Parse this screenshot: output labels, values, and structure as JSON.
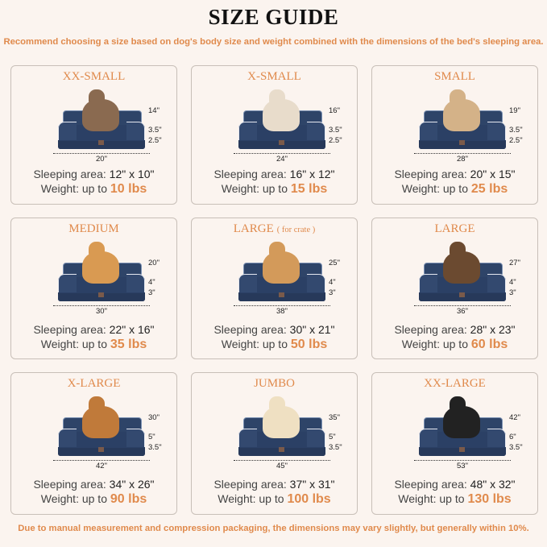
{
  "title": "SIZE GUIDE",
  "subtitle": "Recommend choosing a size based on dog's body size and weight combined with the dimensions of the bed's sleeping area.",
  "footer": "Due to manual measurement and compression packaging, the dimensions may vary slightly, but generally within 10%.",
  "labels": {
    "sleeping_area": "Sleeping area:",
    "weight": "Weight: up to"
  },
  "colors": {
    "accent": "#e08a4c",
    "bed": "#2e4468",
    "background": "#fbf4ef"
  },
  "sizes": [
    {
      "name": "XX-SMALL",
      "pet": "cat",
      "total_height": "14\"",
      "top_height": "3.5\"",
      "base_height": "2.5\"",
      "width": "20\"",
      "sleeping_area": "12\" x 10\"",
      "weight": "10 lbs",
      "pet_color": "#8a6a50"
    },
    {
      "name": "X-SMALL",
      "pet": "dog",
      "total_height": "16\"",
      "top_height": "3.5\"",
      "base_height": "2.5\"",
      "width": "24\"",
      "sleeping_area": "16\" x 12\"",
      "weight": "15 lbs",
      "pet_color": "#e8dccb"
    },
    {
      "name": "SMALL",
      "pet": "dog",
      "total_height": "19\"",
      "top_height": "3.5\"",
      "base_height": "2.5\"",
      "width": "28\"",
      "sleeping_area": "20\" x 15\"",
      "weight": "25 lbs",
      "pet_color": "#d4b288"
    },
    {
      "name": "MEDIUM",
      "pet": "dog",
      "total_height": "20\"",
      "top_height": "4\"",
      "base_height": "3\"",
      "width": "30\"",
      "sleeping_area": "22\" x 16\"",
      "weight": "35 lbs",
      "pet_color": "#d99a52"
    },
    {
      "name": "LARGE",
      "note": "( for crate )",
      "pet": "dog",
      "total_height": "25\"",
      "top_height": "4\"",
      "base_height": "3\"",
      "width": "38\"",
      "sleeping_area": "30\" x 21\"",
      "weight": "50 lbs",
      "pet_color": "#d39a5a"
    },
    {
      "name": "LARGE",
      "pet": "dog",
      "total_height": "27\"",
      "top_height": "4\"",
      "base_height": "3\"",
      "width": "36\"",
      "sleeping_area": "28\" x 23\"",
      "weight": "60 lbs",
      "pet_color": "#6b4a30"
    },
    {
      "name": "X-LARGE",
      "pet": "dog",
      "total_height": "30\"",
      "top_height": "5\"",
      "base_height": "3.5\"",
      "width": "42\"",
      "sleeping_area": "34\" x 26\"",
      "weight": "90 lbs",
      "pet_color": "#c07a3a"
    },
    {
      "name": "JUMBO",
      "pet": "dog",
      "total_height": "35\"",
      "top_height": "5\"",
      "base_height": "3.5\"",
      "width": "45\"",
      "sleeping_area": "37\" x 31\"",
      "weight": "100 lbs",
      "pet_color": "#efe0c2"
    },
    {
      "name": "XX-LARGE",
      "pet": "dog",
      "total_height": "42\"",
      "top_height": "6\"",
      "base_height": "3.5\"",
      "width": "53\"",
      "sleeping_area": "48\" x 32\"",
      "weight": "130 lbs",
      "pet_color": "#222222"
    }
  ]
}
